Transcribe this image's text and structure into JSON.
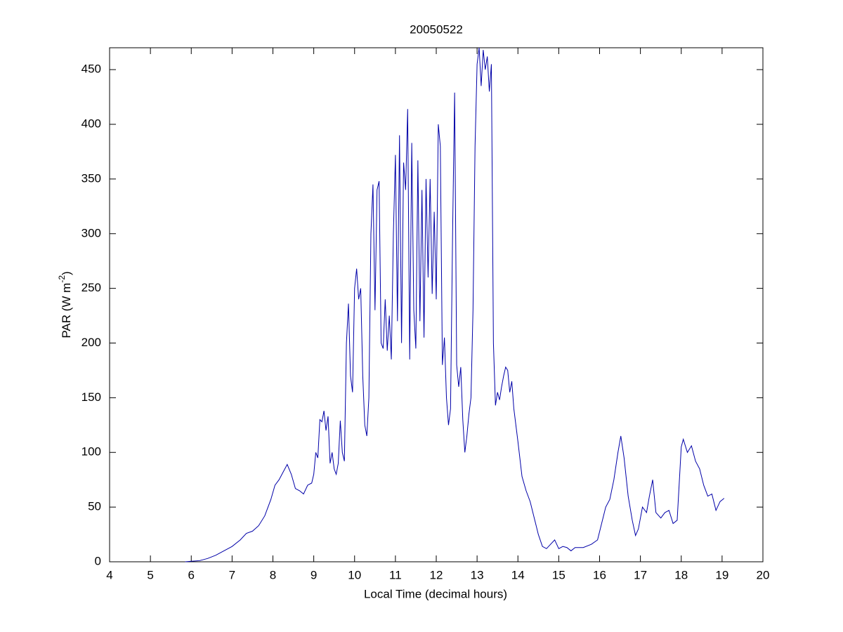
{
  "chart_data": {
    "type": "line",
    "title": "20050522",
    "xlabel": "Local Time (decimal hours)",
    "ylabel": {
      "text": "PAR (W m",
      "superscript": "-2",
      "suffix": ")"
    },
    "xlim": [
      4,
      20
    ],
    "xticks": [
      4,
      5,
      6,
      7,
      8,
      9,
      10,
      11,
      12,
      13,
      14,
      15,
      16,
      17,
      18,
      19,
      20
    ],
    "ylim": [
      0,
      470
    ],
    "yticks": [
      0,
      50,
      100,
      150,
      200,
      250,
      300,
      350,
      400,
      450
    ],
    "series": [
      {
        "color": "#0000a8",
        "x": [
          5.85,
          6.0,
          6.2,
          6.4,
          6.6,
          6.8,
          7.0,
          7.2,
          7.35,
          7.5,
          7.65,
          7.8,
          7.95,
          8.05,
          8.15,
          8.25,
          8.35,
          8.45,
          8.55,
          8.65,
          8.75,
          8.85,
          8.95,
          9.0,
          9.05,
          9.1,
          9.15,
          9.2,
          9.25,
          9.3,
          9.35,
          9.4,
          9.45,
          9.5,
          9.55,
          9.6,
          9.65,
          9.7,
          9.75,
          9.8,
          9.85,
          9.9,
          9.95,
          10.0,
          10.05,
          10.1,
          10.15,
          10.2,
          10.25,
          10.3,
          10.35,
          10.4,
          10.45,
          10.5,
          10.55,
          10.6,
          10.65,
          10.7,
          10.75,
          10.8,
          10.85,
          10.9,
          10.95,
          11.0,
          11.05,
          11.1,
          11.15,
          11.2,
          11.25,
          11.3,
          11.35,
          11.4,
          11.45,
          11.5,
          11.55,
          11.6,
          11.65,
          11.7,
          11.75,
          11.8,
          11.85,
          11.9,
          11.95,
          12.0,
          12.05,
          12.1,
          12.15,
          12.2,
          12.25,
          12.3,
          12.35,
          12.4,
          12.45,
          12.5,
          12.55,
          12.6,
          12.65,
          12.7,
          12.75,
          12.8,
          12.85,
          12.9,
          12.95,
          13.0,
          13.05,
          13.1,
          13.15,
          13.2,
          13.25,
          13.3,
          13.35,
          13.4,
          13.45,
          13.5,
          13.55,
          13.6,
          13.65,
          13.7,
          13.75,
          13.8,
          13.85,
          13.9,
          14.0,
          14.1,
          14.2,
          14.3,
          14.4,
          14.5,
          14.6,
          14.7,
          14.8,
          14.9,
          15.0,
          15.1,
          15.2,
          15.3,
          15.4,
          15.6,
          15.8,
          15.95,
          16.05,
          16.15,
          16.25,
          16.35,
          16.45,
          16.52,
          16.6,
          16.7,
          16.8,
          16.88,
          16.95,
          17.05,
          17.15,
          17.22,
          17.3,
          17.38,
          17.5,
          17.6,
          17.7,
          17.8,
          17.9,
          18.0,
          18.05,
          18.15,
          18.25,
          18.35,
          18.45,
          18.55,
          18.65,
          18.75,
          18.85,
          18.95,
          19.05
        ],
        "values": [
          0,
          0.5,
          1,
          3,
          6,
          10,
          14,
          20,
          26,
          28,
          33,
          42,
          57,
          70,
          75,
          82,
          89,
          80,
          67,
          65,
          62,
          70,
          72,
          80,
          100,
          95,
          130,
          128,
          138,
          120,
          133,
          90,
          100,
          85,
          80,
          90,
          129,
          100,
          92,
          200,
          236,
          170,
          155,
          250,
          268,
          240,
          250,
          170,
          125,
          115,
          150,
          300,
          345,
          230,
          340,
          348,
          200,
          195,
          240,
          193,
          225,
          185,
          300,
          372,
          220,
          390,
          200,
          365,
          340,
          414,
          185,
          383,
          230,
          195,
          367,
          220,
          340,
          205,
          350,
          260,
          350,
          245,
          320,
          240,
          400,
          380,
          180,
          205,
          150,
          125,
          140,
          300,
          429,
          180,
          160,
          178,
          130,
          100,
          115,
          135,
          150,
          230,
          380,
          455,
          470,
          435,
          468,
          450,
          462,
          430,
          455,
          200,
          143,
          155,
          148,
          160,
          170,
          178,
          175,
          155,
          165,
          140,
          110,
          78,
          65,
          55,
          40,
          25,
          14,
          12,
          16,
          20,
          12,
          14,
          13,
          10,
          13,
          13,
          16,
          20,
          35,
          50,
          57,
          75,
          100,
          115,
          95,
          60,
          38,
          24,
          30,
          50,
          45,
          60,
          75,
          45,
          40,
          45,
          47,
          35,
          38,
          105,
          112,
          100,
          106,
          92,
          85,
          70,
          60,
          62,
          47,
          55,
          58
        ]
      }
    ]
  }
}
